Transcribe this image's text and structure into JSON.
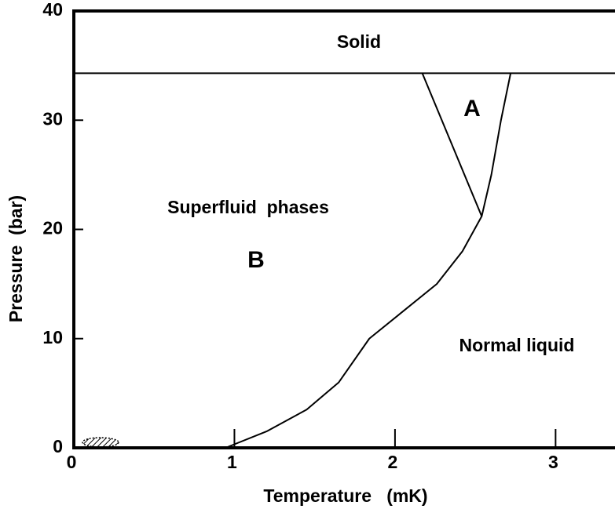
{
  "chart_data": {
    "type": "line",
    "xlabel": "Temperature   (mK)",
    "ylabel": "Pressure  (bar)",
    "xlim": [
      0,
      3.37
    ],
    "ylim": [
      0,
      40
    ],
    "xticks": [
      0,
      1,
      2,
      3
    ],
    "yticks": [
      0,
      10,
      20,
      30,
      40
    ],
    "series": [
      {
        "color": "#000000",
        "x": [
          0,
          3.37
        ],
        "values": [
          34.3,
          34.3
        ]
      },
      {
        "color": "#000000",
        "x": [
          2.17,
          2.54
        ],
        "values": [
          34.3,
          21.2
        ]
      },
      {
        "color": "#000000",
        "x": [
          0.945,
          1.2,
          1.45,
          1.65,
          1.84,
          2.05,
          2.26,
          2.42,
          2.54,
          2.6,
          2.66,
          2.72
        ],
        "values": [
          0,
          1.5,
          3.5,
          6,
          10,
          12.5,
          15,
          18,
          21.2,
          25,
          30,
          34.3
        ]
      }
    ],
    "annotations": [
      "Solid",
      "A",
      "Superfluid  phases",
      "B",
      "Normal liquid"
    ]
  }
}
